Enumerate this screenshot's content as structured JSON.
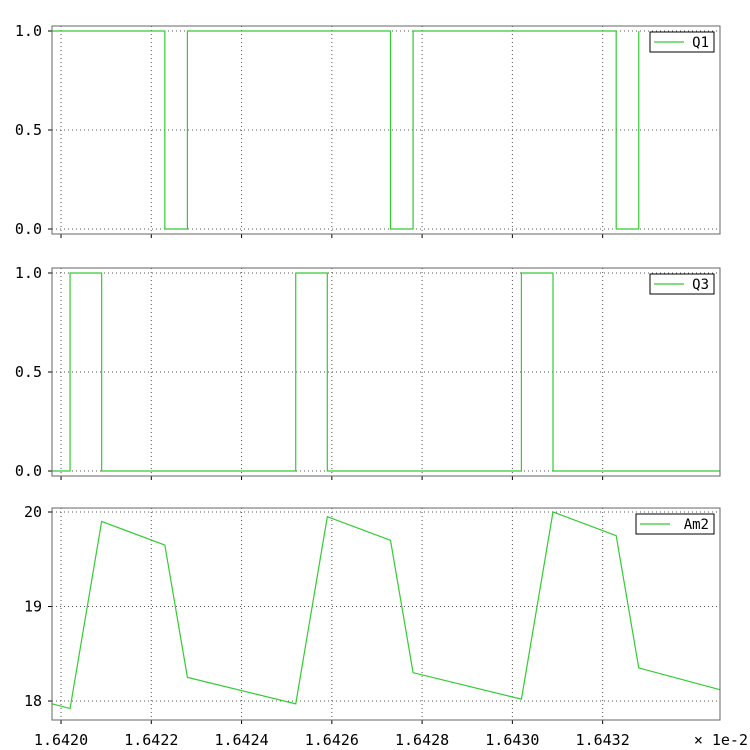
{
  "chart_data": [
    {
      "type": "line",
      "step": true,
      "ylim": [
        0.0,
        1.0
      ],
      "yticks": [
        "0.0",
        "0.5",
        "1.0"
      ],
      "grid": true,
      "legend_position": "top-right",
      "series": [
        {
          "name": "Q1",
          "color": "#33cc33",
          "x": [
            1.64198,
            1.64223,
            1.64223,
            1.64228,
            1.64228,
            1.64273,
            1.64273,
            1.64278,
            1.64278,
            1.64323,
            1.64323,
            1.64328,
            1.64328
          ],
          "y": [
            1,
            1,
            0,
            0,
            1,
            1,
            0,
            0,
            1,
            1,
            0,
            0,
            1
          ]
        }
      ]
    },
    {
      "type": "line",
      "step": true,
      "ylim": [
        0.0,
        1.0
      ],
      "yticks": [
        "0.0",
        "0.5",
        "1.0"
      ],
      "grid": true,
      "legend_position": "top-right",
      "series": [
        {
          "name": "Q3",
          "color": "#33cc33",
          "x": [
            1.64198,
            1.64202,
            1.64202,
            1.64209,
            1.64209,
            1.64252,
            1.64252,
            1.64259,
            1.64259,
            1.64302,
            1.64302,
            1.64309,
            1.64309,
            1.64346
          ],
          "y": [
            0,
            0,
            1,
            1,
            0,
            0,
            1,
            1,
            0,
            0,
            1,
            1,
            0,
            0
          ]
        }
      ]
    },
    {
      "type": "line",
      "ylim": [
        17.8,
        20.0
      ],
      "yticks": [
        "18",
        "19",
        "20"
      ],
      "grid": true,
      "legend_position": "top-right",
      "series": [
        {
          "name": "Am2",
          "color": "#33cc33",
          "x": [
            1.64198,
            1.64202,
            1.64209,
            1.64223,
            1.64228,
            1.64252,
            1.64259,
            1.64273,
            1.64278,
            1.64302,
            1.64309,
            1.64323,
            1.64328,
            1.64346
          ],
          "y": [
            17.97,
            17.92,
            19.9,
            19.65,
            18.25,
            17.97,
            19.95,
            19.7,
            18.3,
            18.02,
            20.0,
            19.75,
            18.35,
            18.12
          ]
        }
      ]
    }
  ],
  "x_axis": {
    "xlim": [
      1.64198,
      1.64346
    ],
    "ticks": [
      1.642,
      1.6422,
      1.6424,
      1.6426,
      1.6428,
      1.643,
      1.6432
    ],
    "tick_labels": [
      "1.6420",
      "1.6422",
      "1.6424",
      "1.6426",
      "1.6428",
      "1.6430",
      "1.6432"
    ],
    "multiplier_label": "× 1e-2"
  }
}
